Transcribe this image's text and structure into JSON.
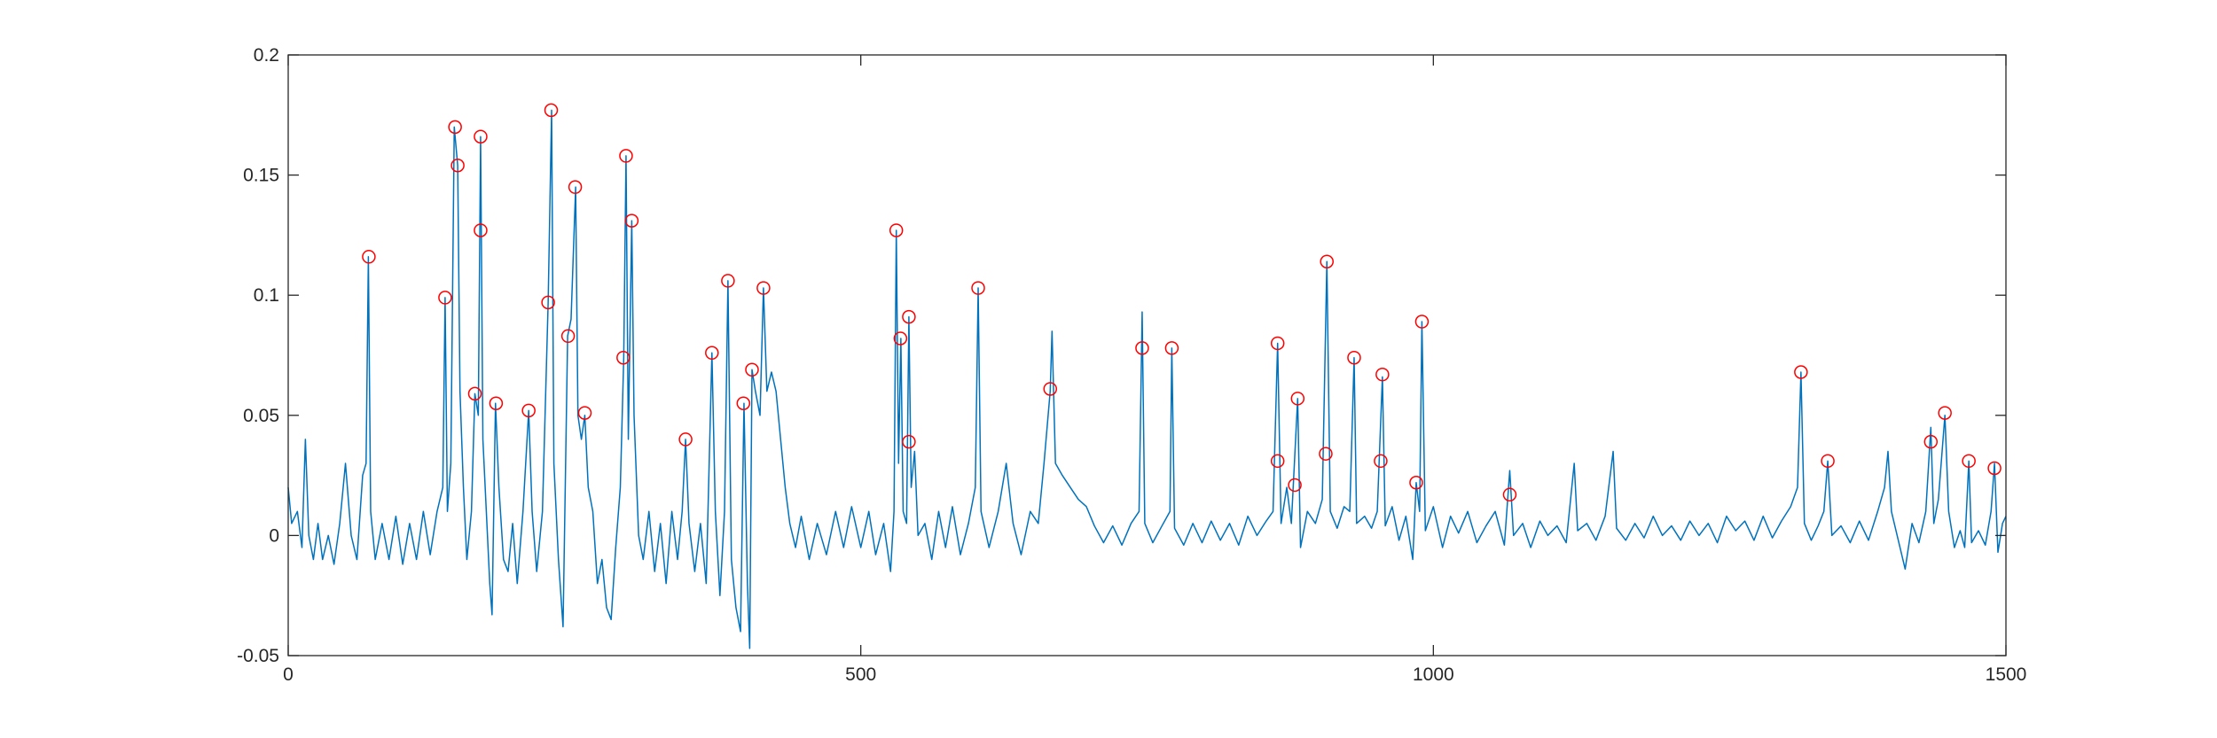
{
  "chart_data": {
    "type": "line",
    "xlim": [
      0,
      1500
    ],
    "ylim": [
      -0.05,
      0.2
    ],
    "xticks": [
      0,
      500,
      1000,
      1500
    ],
    "yticks": [
      -0.05,
      0,
      0.05,
      0.1,
      0.15,
      0.2
    ],
    "series": [
      {
        "mode": "line",
        "color": "#0072bd",
        "x": [
          0,
          3,
          8,
          12,
          15,
          18,
          22,
          26,
          30,
          35,
          40,
          45,
          50,
          55,
          60,
          65,
          68,
          70,
          72,
          76,
          82,
          88,
          94,
          100,
          106,
          112,
          118,
          124,
          130,
          135,
          137,
          139,
          142,
          145,
          148,
          150,
          153,
          156,
          160,
          163,
          166,
          168,
          170,
          173,
          176,
          178,
          181,
          184,
          188,
          192,
          196,
          200,
          205,
          210,
          213,
          217,
          222,
          227,
          230,
          232,
          236,
          240,
          244,
          247,
          251,
          253,
          256,
          259,
          262,
          266,
          270,
          274,
          278,
          282,
          286,
          290,
          293,
          295,
          297,
          300,
          302,
          306,
          310,
          315,
          320,
          325,
          330,
          335,
          340,
          344,
          347,
          350,
          355,
          360,
          365,
          370,
          373,
          377,
          381,
          384,
          387,
          391,
          395,
          398,
          401,
          403,
          405,
          408,
          412,
          415,
          418,
          422,
          426,
          430,
          434,
          438,
          443,
          448,
          455,
          462,
          470,
          478,
          485,
          492,
          500,
          507,
          513,
          520,
          526,
          529,
          531,
          533,
          535,
          537,
          540,
          542,
          544,
          547,
          550,
          556,
          562,
          568,
          574,
          580,
          587,
          594,
          600,
          602.5,
          605,
          612,
          620,
          627,
          633,
          640,
          648,
          655,
          660,
          665.4,
          667,
          670,
          676,
          683,
          690,
          697,
          704,
          712,
          720,
          728,
          736,
          743,
          745.7,
          748,
          755,
          763,
          770,
          771.6,
          774,
          782,
          790,
          798,
          806,
          814,
          822,
          830,
          838,
          846,
          854,
          860,
          864,
          867,
          872,
          876,
          881.5,
          884,
          890,
          897,
          903,
          907,
          910,
          916,
          922,
          927,
          930.8,
          933,
          940,
          946,
          951,
          955.5,
          958,
          964,
          970,
          976,
          982,
          985,
          988,
          990,
          993,
          1000,
          1008,
          1015,
          1022,
          1030,
          1038,
          1046,
          1054,
          1062,
          1066.7,
          1070,
          1078,
          1085,
          1093,
          1100,
          1108,
          1116,
          1123,
          1126,
          1134,
          1142,
          1150,
          1157,
          1160,
          1168,
          1176,
          1184,
          1192,
          1200,
          1208,
          1216,
          1224,
          1232,
          1240,
          1248,
          1256,
          1264,
          1272,
          1280,
          1288,
          1296,
          1304,
          1312,
          1318,
          1321,
          1324,
          1330,
          1336,
          1341,
          1344.4,
          1348,
          1356,
          1364,
          1372,
          1380,
          1388,
          1394,
          1397,
          1400,
          1406,
          1412,
          1418,
          1424,
          1430,
          1434.4,
          1437,
          1441,
          1446.7,
          1450,
          1455,
          1460,
          1464,
          1467.6,
          1470,
          1476,
          1482,
          1487,
          1490,
          1493,
          1497,
          1500
        ],
        "values": [
          0.02,
          0.005,
          0.01,
          -0.005,
          0.04,
          0,
          -0.01,
          0.005,
          -0.01,
          0,
          -0.012,
          0.005,
          0.03,
          0,
          -0.01,
          0.025,
          0.03,
          0.116,
          0.01,
          -0.01,
          0.005,
          -0.01,
          0.008,
          -0.012,
          0.005,
          -0.01,
          0.01,
          -0.008,
          0.01,
          0.02,
          0.099,
          0.01,
          0.03,
          0.17,
          0.154,
          0.06,
          0.02,
          -0.01,
          0.01,
          0.059,
          0.05,
          0.166,
          0.04,
          0.01,
          -0.02,
          -0.033,
          0.055,
          0.02,
          -0.01,
          -0.015,
          0.005,
          -0.02,
          0.01,
          0.052,
          0.01,
          -0.015,
          0.01,
          0.097,
          0.177,
          0.03,
          -0.01,
          -0.038,
          0.083,
          0.09,
          0.145,
          0.05,
          0.04,
          0.05,
          0.02,
          0.01,
          -0.02,
          -0.01,
          -0.03,
          -0.035,
          -0.005,
          0.02,
          0.074,
          0.158,
          0.04,
          0.131,
          0.05,
          0,
          -0.01,
          0.01,
          -0.015,
          0.005,
          -0.02,
          0.01,
          -0.01,
          0.01,
          0.04,
          0.005,
          -0.015,
          0.005,
          -0.02,
          0.076,
          0.01,
          -0.025,
          0.01,
          0.106,
          -0.01,
          -0.03,
          -0.04,
          0.055,
          -0.02,
          -0.047,
          0.069,
          0.06,
          0.05,
          0.103,
          0.06,
          0.068,
          0.06,
          0.04,
          0.02,
          0.005,
          -0.005,
          0.008,
          -0.01,
          0.005,
          -0.008,
          0.01,
          -0.005,
          0.012,
          -0.005,
          0.01,
          -0.008,
          0.005,
          -0.015,
          0.01,
          0.127,
          0.03,
          0.082,
          0.01,
          0.005,
          0.091,
          0.02,
          0.035,
          0,
          0.005,
          -0.01,
          0.01,
          -0.005,
          0.012,
          -0.008,
          0.005,
          0.02,
          0.103,
          0.01,
          -0.005,
          0.01,
          0.03,
          0.005,
          -0.008,
          0.01,
          0.005,
          0.03,
          0.06,
          0.085,
          0.03,
          0.025,
          0.02,
          0.015,
          0.012,
          0.004,
          -0.003,
          0.004,
          -0.004,
          0.005,
          0.01,
          0.093,
          0.005,
          -0.003,
          0.004,
          0.01,
          0.078,
          0.003,
          -0.004,
          0.005,
          -0.003,
          0.006,
          -0.002,
          0.005,
          -0.004,
          0.008,
          0,
          0.006,
          0.01,
          0.08,
          0.005,
          0.02,
          0.005,
          0.057,
          -0.005,
          0.01,
          0.005,
          0.015,
          0.114,
          0.01,
          0.003,
          0.012,
          0.01,
          0.074,
          0.005,
          0.008,
          0.003,
          0.01,
          0.066,
          0.004,
          0.012,
          -0.002,
          0.008,
          -0.01,
          0.022,
          0.01,
          0.089,
          0.002,
          0.012,
          -0.005,
          0.008,
          0.001,
          0.01,
          -0.003,
          0.004,
          0.01,
          -0.004,
          0.027,
          0,
          0.005,
          -0.005,
          0.006,
          0,
          0.004,
          -0.003,
          0.03,
          0.002,
          0.005,
          -0.002,
          0.008,
          0.035,
          0.003,
          -0.002,
          0.005,
          -0.001,
          0.008,
          0,
          0.004,
          -0.002,
          0.006,
          0,
          0.005,
          -0.003,
          0.008,
          0.002,
          0.006,
          -0.002,
          0.008,
          -0.001,
          0.006,
          0.012,
          0.02,
          0.068,
          0.005,
          -0.002,
          0.004,
          0.01,
          0.031,
          0,
          0.004,
          -0.003,
          0.006,
          -0.002,
          0.01,
          0.02,
          0.035,
          0.01,
          -0.002,
          -0.014,
          0.005,
          -0.003,
          0.01,
          0.045,
          0.005,
          0.015,
          0.05,
          0.01,
          -0.005,
          0.002,
          -0.005,
          0.031,
          -0.003,
          0.002,
          -0.004,
          0.01,
          0.03,
          -0.007,
          0.005,
          0.008
        ]
      },
      {
        "mode": "markers",
        "marker": "circle",
        "color": "#ff0000",
        "x": [
          70.4,
          137,
          145.7,
          148,
          163,
          168,
          168,
          181.5,
          210,
          227,
          229.6,
          244.4,
          250.6,
          259,
          292.6,
          295,
          300,
          347,
          370,
          384,
          397.5,
          405,
          415,
          531,
          534.6,
          542,
          542,
          602.5,
          665.4,
          745.7,
          771.6,
          864,
          864,
          879,
          881.5,
          906,
          907,
          930.8,
          954,
          955.5,
          985,
          990,
          1066.7,
          1321,
          1344.4,
          1434.4,
          1446.7,
          1467.6,
          1490
        ],
        "values": [
          0.116,
          0.099,
          0.17,
          0.154,
          0.059,
          0.166,
          0.127,
          0.055,
          0.052,
          0.097,
          0.177,
          0.083,
          0.145,
          0.051,
          0.074,
          0.158,
          0.131,
          0.04,
          0.076,
          0.106,
          0.055,
          0.069,
          0.103,
          0.127,
          0.082,
          0.091,
          0.039,
          0.103,
          0.061,
          0.078,
          0.078,
          0.08,
          0.031,
          0.021,
          0.057,
          0.034,
          0.114,
          0.074,
          0.031,
          0.067,
          0.022,
          0.089,
          0.017,
          0.068,
          0.031,
          0.039,
          0.051,
          0.031,
          0.028
        ]
      }
    ]
  }
}
